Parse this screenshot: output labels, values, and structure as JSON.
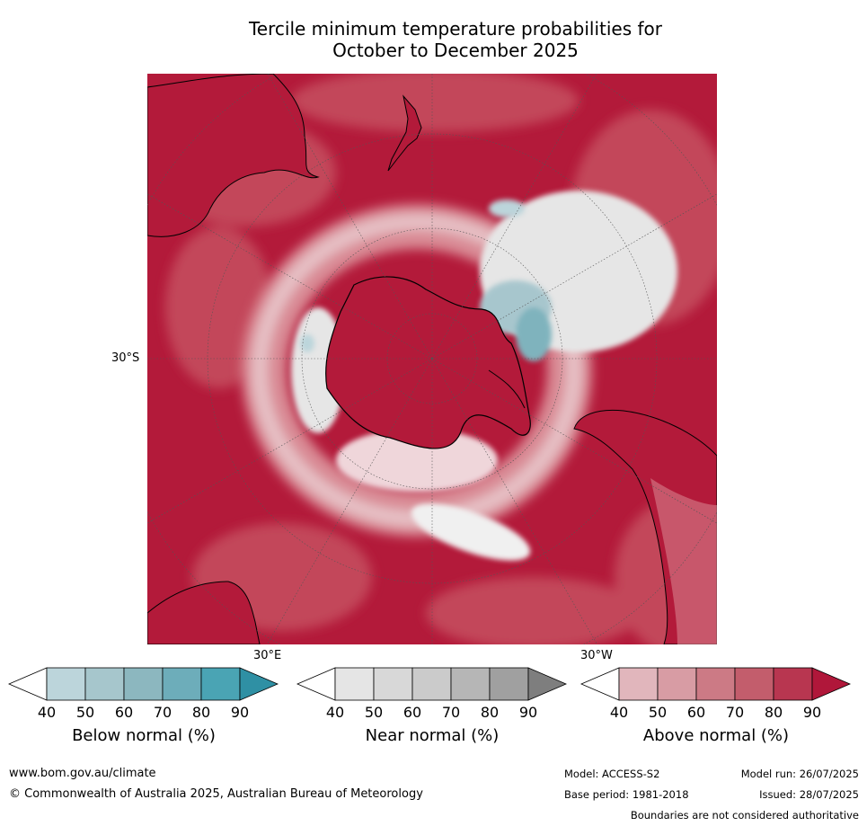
{
  "title": {
    "line1": "Tercile minimum temperature probabilities for",
    "line2": "October to December 2025"
  },
  "map": {
    "projection": "south-polar-stereographic",
    "graticule_labels": {
      "left": "30°S",
      "bottom_left": "30°E",
      "bottom_right": "30°W"
    },
    "colors": {
      "above_strong": "#b31a3a",
      "above_mid": "#c3475a",
      "above_light": "#d98a94",
      "near_normal": "#e6e6e6",
      "below_light": "#a7c6cd",
      "below_mid": "#7fb3bd",
      "coast": "#000000",
      "graticule": "#555555"
    }
  },
  "colorbars": [
    {
      "label": "Below normal (%)",
      "ticks": [
        "40",
        "50",
        "60",
        "70",
        "80",
        "90"
      ],
      "colors": [
        "#ffffff",
        "#bcd5db",
        "#a6c6cc",
        "#8cb7bf",
        "#6dadba",
        "#4aa4b4",
        "#2f90a4"
      ]
    },
    {
      "label": "Near normal (%)",
      "ticks": [
        "40",
        "50",
        "60",
        "70",
        "80",
        "90"
      ],
      "colors": [
        "#ffffff",
        "#e5e5e5",
        "#d8d8d8",
        "#cbcbcb",
        "#b6b6b6",
        "#a0a0a0",
        "#7e7e7e"
      ]
    },
    {
      "label": "Above normal (%)",
      "ticks": [
        "40",
        "50",
        "60",
        "70",
        "80",
        "90"
      ],
      "colors": [
        "#ffffff",
        "#e1b6bc",
        "#d89ca4",
        "#cc7a85",
        "#c35d6c",
        "#b83650",
        "#b0173a"
      ]
    }
  ],
  "footer": {
    "website": "www.bom.gov.au/climate",
    "copyright": "© Commonwealth of Australia 2025, Australian Bureau of Meteorology",
    "model": "Model: ACCESS-S2",
    "model_run": "Model run: 26/07/2025",
    "base_period": "Base period: 1981-2018",
    "issued": "Issued: 28/07/2025",
    "disclaimer": "Boundaries are not considered authoritative"
  }
}
